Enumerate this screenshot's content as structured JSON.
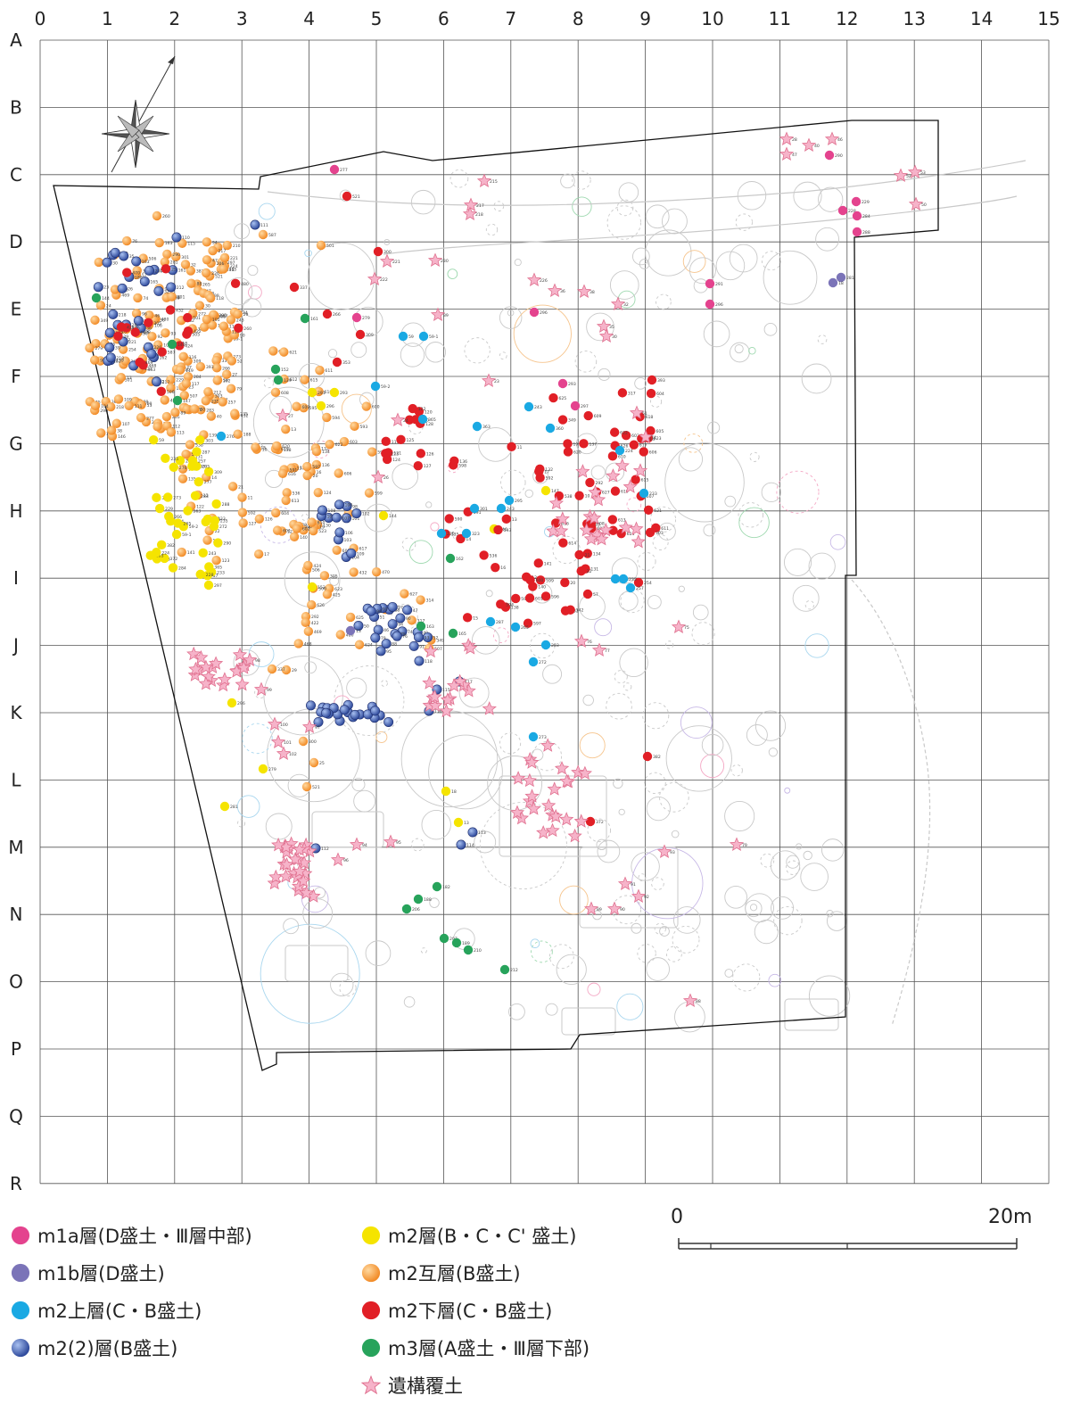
{
  "grid": {
    "col_labels": [
      "0",
      "1",
      "2",
      "3",
      "4",
      "5",
      "6",
      "7",
      "8",
      "9",
      "10",
      "11",
      "12",
      "13",
      "14",
      "15"
    ],
    "row_labels": [
      "A",
      "B",
      "C",
      "D",
      "E",
      "F",
      "G",
      "H",
      "I",
      "J",
      "K",
      "L",
      "M",
      "N",
      "O",
      "P",
      "Q",
      "R"
    ]
  },
  "colors": {
    "m1a": "#e4438e",
    "m1b": "#7b74b8",
    "m2u": "#1aa9e3",
    "m2_2": "#2f4a9c",
    "m2": "#f5e400",
    "m2g": "#f28c28",
    "m2l": "#e11f26",
    "m3": "#27a35b",
    "star": "#ef8fb0",
    "grid": "#555555",
    "outline": "#111111",
    "bg_feature": "#c9c9c9"
  },
  "legend": [
    {
      "key": "m1a",
      "label": "m1a層(D盛土・Ⅲ層中部)",
      "icon": "pink-dot-icon"
    },
    {
      "key": "m1b",
      "label": "m1b層(D盛土)",
      "icon": "purple-dot-icon"
    },
    {
      "key": "m2u",
      "label": "m2上層(C・B盛土)",
      "icon": "cyan-dot-icon"
    },
    {
      "key": "m2_2",
      "label": "m2(2)層(B盛土)",
      "icon": "blue-sphere-icon"
    },
    {
      "key": "m2",
      "label": "m2層(B・C・C' 盛土)",
      "icon": "yellow-dot-icon"
    },
    {
      "key": "m2g",
      "label": "m2互層(B盛土)",
      "icon": "orange-sphere-icon"
    },
    {
      "key": "m2l",
      "label": "m2下層(C・B盛土)",
      "icon": "red-dot-icon"
    },
    {
      "key": "m3",
      "label": "m3層(A盛土・Ⅲ層下部)",
      "icon": "green-dot-icon"
    },
    {
      "key": "star",
      "label": "遺構覆土",
      "icon": "pink-star-icon"
    }
  ],
  "scale_bar": {
    "start_label": "0",
    "end_label": "20m"
  },
  "point_labels": [
    "314",
    "292",
    "349",
    "317",
    "305",
    "500",
    "506",
    "505",
    "507",
    "468",
    "469",
    "470",
    "480",
    "424",
    "422",
    "432",
    "425",
    "260",
    "587",
    "501",
    "29",
    "25",
    "521",
    "300",
    "337",
    "266",
    "309",
    "353",
    "372",
    "382",
    "393",
    "303",
    "254",
    "57",
    "59",
    "59-1",
    "59-2",
    "243",
    "360",
    "363",
    "365",
    "295",
    "243",
    "301",
    "323",
    "235",
    "265",
    "272",
    "283",
    "273",
    "224",
    "233",
    "265",
    "235",
    "257",
    "287",
    "276",
    "277",
    "229",
    "228",
    "284",
    "288",
    "290",
    "291",
    "296",
    "293",
    "297",
    "296",
    "279",
    "281",
    "18",
    "13",
    "144",
    "146",
    "147",
    "152",
    "139",
    "161",
    "162",
    "163",
    "165",
    "182",
    "188",
    "206",
    "207",
    "189",
    "210",
    "212",
    "215",
    "217",
    "218",
    "221",
    "222",
    "230",
    "226",
    "36",
    "38",
    "39",
    "35",
    "32",
    "30",
    "23",
    "24",
    "26",
    "27",
    "28",
    "40",
    "46",
    "47",
    "52",
    "53",
    "50",
    "51",
    "74",
    "75",
    "76",
    "77",
    "79",
    "88",
    "89",
    "90",
    "91",
    "92",
    "93",
    "94",
    "95",
    "96",
    "97",
    "98",
    "99",
    "100",
    "101",
    "102",
    "103",
    "104",
    "105",
    "106",
    "107",
    "108",
    "109",
    "110",
    "111",
    "112",
    "113",
    "114",
    "115",
    "116",
    "117",
    "118",
    "119",
    "120",
    "121",
    "122",
    "123",
    "124",
    "125",
    "126",
    "127",
    "128",
    "129",
    "130",
    "131",
    "132",
    "133",
    "134",
    "135",
    "136",
    "137",
    "138",
    "140",
    "141",
    "142",
    "10",
    "11",
    "12",
    "13",
    "14",
    "15",
    "16",
    "17",
    "19",
    "20",
    "21",
    "22",
    "538",
    "523",
    "536",
    "590",
    "591",
    "592",
    "593",
    "594",
    "595",
    "596",
    "597",
    "598",
    "599",
    "600",
    "601",
    "602",
    "603",
    "604",
    "605",
    "606",
    "607",
    "608",
    "609",
    "610",
    "611",
    "612",
    "613",
    "614",
    "615",
    "616",
    "617",
    "618",
    "619",
    "620",
    "621",
    "622",
    "623",
    "624",
    "625",
    "626",
    "627"
  ]
}
